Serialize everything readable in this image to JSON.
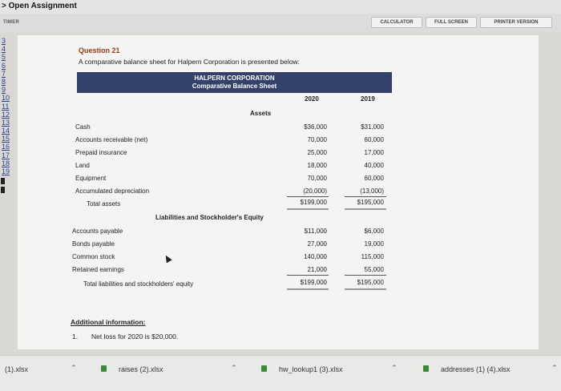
{
  "window": {
    "title": "> Open Assignment"
  },
  "toolbar": {
    "timer": "TIMER",
    "calculator": "CALCULATOR",
    "fullscreen": "FULL SCREEN",
    "printer": "PRINTER VERSION"
  },
  "sidebar": {
    "numbers": [
      "3",
      "4",
      "5",
      "6",
      "7",
      "8",
      "9",
      "10",
      "11",
      "12",
      "13",
      "14",
      "15",
      "16",
      "17",
      "18",
      "19"
    ]
  },
  "question": {
    "title": "Question 21",
    "text": "A comparative balance sheet for Halpern Corporation is presented below:",
    "company": "HALPERN CORPORATION",
    "statement": "Comparative Balance Sheet",
    "years": [
      "2020",
      "2019"
    ],
    "assets_heading": "Assets",
    "assets": [
      {
        "label": "Cash",
        "v2020": "$36,000",
        "v2019": "$31,000"
      },
      {
        "label": "Accounts receivable (net)",
        "v2020": "70,000",
        "v2019": "60,000"
      },
      {
        "label": "Prepaid insurance",
        "v2020": "25,000",
        "v2019": "17,000"
      },
      {
        "label": "Land",
        "v2020": "18,000",
        "v2019": "40,000"
      },
      {
        "label": "Equipment",
        "v2020": "70,000",
        "v2019": "60,000"
      },
      {
        "label": "Accumulated depreciation",
        "v2020": "(20,000)",
        "v2019": "(13,000)"
      }
    ],
    "total_assets": {
      "label": "Total assets",
      "v2020": "$199,000",
      "v2019": "$195,000"
    },
    "liab_heading": "Liabilities and Stockholder's Equity",
    "liabilities": [
      {
        "label": "Accounts payable",
        "v2020": "$11,000",
        "v2019": "$6,000"
      },
      {
        "label": "Bonds payable",
        "v2020": "27,000",
        "v2019": "19,000"
      },
      {
        "label": "Common stock",
        "v2020": "140,000",
        "v2019": "115,000"
      },
      {
        "label": "Retained earnings",
        "v2020": "21,000",
        "v2019": "55,000"
      }
    ],
    "total_liab": {
      "label": "Total liabilities and stockholders' equity",
      "v2020": "$199,000",
      "v2019": "$195,000"
    },
    "additional_heading": "Additional information:",
    "notes": [
      {
        "num": "1.",
        "text": "Net loss for 2020 is $20,000."
      }
    ]
  },
  "downloads": [
    {
      "name": "(1).xlsx"
    },
    {
      "name": "raises (2).xlsx"
    },
    {
      "name": "hw_lookup1 (3).xlsx"
    },
    {
      "name": "addresses (1) (4).xlsx"
    }
  ],
  "colors": {
    "band": "#34416b",
    "title_red": "#9b3a14",
    "link_blue": "#2a3e8c"
  }
}
